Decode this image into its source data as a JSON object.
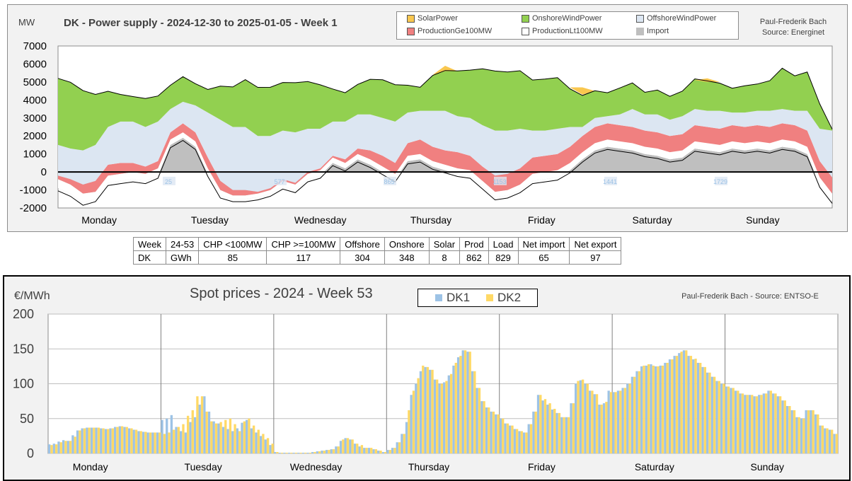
{
  "top_chart": {
    "title": "DK - Power supply - 2024-12-30 to 2025-01-05 - Week 1",
    "unit": "MW",
    "credit_line1": "Paul-Frederik Bach",
    "credit_line2": "Source: Energinet",
    "legend": [
      {
        "label": "SolarPower",
        "color": "#f9c74f"
      },
      {
        "label": "OnshoreWindPower",
        "color": "#92d050"
      },
      {
        "label": "OffshoreWindPower",
        "color": "#dce6f2"
      },
      {
        "label": "ProductionGe100MW",
        "color": "#f08080"
      },
      {
        "label": "ProductionLt100MW",
        "color": "#ffffff"
      },
      {
        "label": "Import",
        "color": "#bfbfbf"
      }
    ],
    "hour_markers": [
      "25",
      "577",
      "865",
      "1153",
      "1441",
      "1729"
    ]
  },
  "summary_table": {
    "header": [
      "Week",
      "24-53",
      "CHP <100MW",
      "CHP >=100MW",
      "Offshore",
      "Onshore",
      "Solar",
      "Prod",
      "Load",
      "Net import",
      "Net export"
    ],
    "row": [
      "DK",
      "GWh",
      "85",
      "117",
      "304",
      "348",
      "8",
      "862",
      "829",
      "65",
      "97"
    ]
  },
  "bottom_chart": {
    "title": "Spot prices - 2024 - Week 53",
    "unit": "€/MWh",
    "credit": "Paul-Frederik Bach - Source: ENTSO-E",
    "legend": [
      {
        "label": "DK1",
        "color": "#9dc3e6"
      },
      {
        "label": "DK2",
        "color": "#ffd966"
      }
    ]
  },
  "chart_data": [
    {
      "type": "area",
      "title": "DK - Power supply - 2024-12-30 to 2025-01-05 - Week 1",
      "xlabel": "",
      "ylabel": "MW",
      "ylim": [
        -2000,
        7000
      ],
      "yticks": [
        -2000,
        -1000,
        0,
        1000,
        2000,
        3000,
        4000,
        5000,
        6000,
        7000
      ],
      "categories": [
        "Monday",
        "Tuesday",
        "Wednesday",
        "Thursday",
        "Friday",
        "Saturday",
        "Sunday"
      ],
      "grid": false,
      "legend_position": "top-right",
      "x_hours_step": 4,
      "series": [
        {
          "name": "Import",
          "color": "#bfbfbf",
          "values": [
            -900,
            -1200,
            -1700,
            -1500,
            -600,
            -500,
            -400,
            -500,
            -200,
            1500,
            1900,
            1400,
            -100,
            -1300,
            -1500,
            -1500,
            -1400,
            -1200,
            -800,
            -1000,
            -400,
            -200,
            500,
            200,
            700,
            400,
            0,
            -400,
            600,
            700,
            300,
            100,
            -100,
            -200,
            -800,
            -1400,
            -1300,
            -1000,
            -500,
            -400,
            -300,
            100,
            700,
            1200,
            1400,
            1300,
            1200,
            1000,
            900,
            700,
            800,
            1300,
            1200,
            1100,
            1300,
            1200,
            1300,
            1200,
            1400,
            1300,
            1000,
            -700,
            -1600
          ]
        },
        {
          "name": "ProductionLt100MW",
          "color": "#ffffff",
          "values": [
            500,
            500,
            500,
            400,
            400,
            400,
            400,
            400,
            400,
            300,
            300,
            300,
            300,
            300,
            200,
            200,
            200,
            200,
            300,
            300,
            300,
            300,
            300,
            300,
            300,
            300,
            300,
            300,
            300,
            300,
            300,
            300,
            300,
            300,
            300,
            300,
            300,
            300,
            400,
            400,
            400,
            400,
            400,
            400,
            400,
            400,
            400,
            400,
            400,
            400,
            400,
            400,
            400,
            400,
            400,
            400,
            400,
            400,
            400,
            400,
            400,
            400,
            400
          ]
        },
        {
          "name": "ProductionGe100MW",
          "color": "#f08080",
          "values": [
            200,
            300,
            500,
            600,
            600,
            600,
            500,
            400,
            400,
            400,
            500,
            500,
            600,
            500,
            300,
            300,
            100,
            100,
            100,
            100,
            100,
            100,
            100,
            200,
            300,
            500,
            600,
            600,
            700,
            800,
            800,
            800,
            900,
            800,
            800,
            900,
            900,
            900,
            900,
            900,
            900,
            900,
            900,
            900,
            900,
            900,
            900,
            900,
            900,
            900,
            900,
            900,
            900,
            900,
            900,
            900,
            900,
            900,
            900,
            900,
            900,
            900,
            900
          ]
        },
        {
          "name": "OffshoreWindPower",
          "color": "#dce6f2",
          "values": [
            1700,
            1700,
            1900,
            2000,
            2100,
            2300,
            2300,
            2200,
            2200,
            1300,
            1200,
            1500,
            2500,
            3400,
            3500,
            3500,
            3100,
            2900,
            2700,
            2800,
            2400,
            2200,
            1900,
            2100,
            1900,
            2000,
            2100,
            2300,
            1700,
            1600,
            2000,
            2200,
            2000,
            2100,
            2300,
            2500,
            2400,
            2200,
            1500,
            1400,
            1400,
            1100,
            500,
            500,
            400,
            600,
            1000,
            900,
            1000,
            900,
            1000,
            900,
            900,
            1000,
            700,
            800,
            800,
            900,
            800,
            800,
            1100,
            1800,
            2600
          ]
        },
        {
          "name": "OnshoreWindPower",
          "color": "#92d050",
          "values": [
            3700,
            3600,
            3300,
            2800,
            2000,
            1600,
            1400,
            1500,
            1400,
            1300,
            1400,
            1300,
            1300,
            1800,
            2200,
            2600,
            2700,
            2800,
            2700,
            2700,
            2600,
            2400,
            1800,
            1700,
            1700,
            1900,
            2100,
            2000,
            1500,
            1400,
            2000,
            2200,
            2500,
            2600,
            3100,
            3400,
            3300,
            3200,
            2800,
            2800,
            2800,
            2200,
            1800,
            1500,
            1300,
            1400,
            1400,
            1300,
            1400,
            1300,
            1400,
            1600,
            1600,
            1600,
            1400,
            1500,
            1500,
            1600,
            2200,
            2000,
            2200,
            1400,
            100
          ]
        },
        {
          "name": "SolarPower",
          "color": "#f9c74f",
          "values": [
            0,
            0,
            0,
            0,
            0,
            0,
            0,
            0,
            0,
            0,
            0,
            0,
            0,
            0,
            0,
            0,
            0,
            0,
            0,
            0,
            0,
            0,
            0,
            0,
            0,
            0,
            0,
            0,
            0,
            0,
            0,
            300,
            0,
            0,
            0,
            0,
            0,
            0,
            0,
            0,
            0,
            0,
            400,
            0,
            0,
            0,
            0,
            0,
            0,
            0,
            0,
            0,
            200,
            0,
            0,
            0,
            0,
            0,
            0,
            0,
            0,
            0,
            0
          ]
        }
      ]
    },
    {
      "type": "bar",
      "title": "Spot prices - 2024 - Week 53",
      "xlabel": "",
      "ylabel": "€/MWh",
      "ylim": [
        0,
        200
      ],
      "yticks": [
        0,
        50,
        100,
        150,
        200
      ],
      "categories": [
        "Monday",
        "Tuesday",
        "Wednesday",
        "Thursday",
        "Friday",
        "Saturday",
        "Sunday"
      ],
      "grid": true,
      "legend_position": "top-center",
      "hours_per_day": 24,
      "series": [
        {
          "name": "DK1",
          "color": "#9dc3e6",
          "values": [
            13,
            14,
            17,
            19,
            18,
            26,
            33,
            36,
            37,
            37,
            37,
            36,
            35,
            36,
            38,
            39,
            38,
            36,
            34,
            32,
            31,
            30,
            30,
            30,
            48,
            50,
            55,
            38,
            32,
            30,
            45,
            52,
            70,
            82,
            60,
            46,
            43,
            38,
            35,
            32,
            36,
            44,
            48,
            36,
            30,
            25,
            20,
            12,
            2,
            1,
            1,
            1,
            1,
            1,
            1,
            1,
            2,
            3,
            4,
            5,
            6,
            10,
            18,
            22,
            20,
            14,
            10,
            8,
            8,
            6,
            4,
            2,
            5,
            8,
            16,
            28,
            45,
            84,
            100,
            118,
            124,
            120,
            106,
            100,
            102,
            112,
            126,
            138,
            148,
            146,
            118,
            94,
            75,
            66,
            60,
            56,
            50,
            43,
            40,
            35,
            32,
            30,
            42,
            60,
            84,
            76,
            70,
            63,
            58,
            52,
            52,
            72,
            100,
            105,
            100,
            90,
            85,
            70,
            72,
            90,
            88,
            90,
            94,
            100,
            110,
            118,
            125,
            126,
            128,
            125,
            126,
            130,
            135,
            140,
            144,
            148,
            140,
            135,
            130,
            124,
            116,
            110,
            104,
            100,
            96,
            94,
            90,
            86,
            84,
            84,
            82,
            84,
            86,
            90,
            86,
            82,
            76,
            68,
            62,
            52,
            50,
            62,
            62,
            56,
            40,
            36,
            34,
            28
          ]
        },
        {
          "name": "DK2",
          "color": "#ffd966",
          "values": [
            12,
            13,
            16,
            18,
            18,
            24,
            33,
            36,
            37,
            37,
            37,
            36,
            35,
            36,
            38,
            39,
            38,
            36,
            34,
            32,
            31,
            30,
            30,
            30,
            28,
            30,
            34,
            38,
            42,
            54,
            62,
            82,
            82,
            60,
            46,
            43,
            45,
            48,
            50,
            42,
            32,
            46,
            50,
            40,
            34,
            28,
            22,
            14,
            2,
            1,
            1,
            1,
            1,
            1,
            1,
            1,
            2,
            3,
            4,
            5,
            6,
            10,
            20,
            22,
            20,
            14,
            12,
            8,
            8,
            6,
            4,
            2,
            5,
            8,
            16,
            28,
            62,
            90,
            108,
            126,
            124,
            120,
            106,
            100,
            104,
            114,
            130,
            140,
            148,
            146,
            118,
            94,
            75,
            66,
            60,
            56,
            50,
            43,
            40,
            35,
            32,
            30,
            42,
            60,
            84,
            78,
            72,
            64,
            58,
            52,
            52,
            72,
            104,
            106,
            100,
            90,
            85,
            70,
            74,
            88,
            88,
            90,
            94,
            100,
            110,
            118,
            126,
            128,
            126,
            125,
            126,
            130,
            135,
            140,
            146,
            148,
            140,
            136,
            130,
            124,
            116,
            110,
            104,
            100,
            96,
            94,
            90,
            86,
            84,
            84,
            82,
            84,
            86,
            90,
            86,
            82,
            76,
            68,
            62,
            52,
            50,
            62,
            62,
            56,
            40,
            36,
            34,
            28
          ]
        }
      ]
    }
  ]
}
